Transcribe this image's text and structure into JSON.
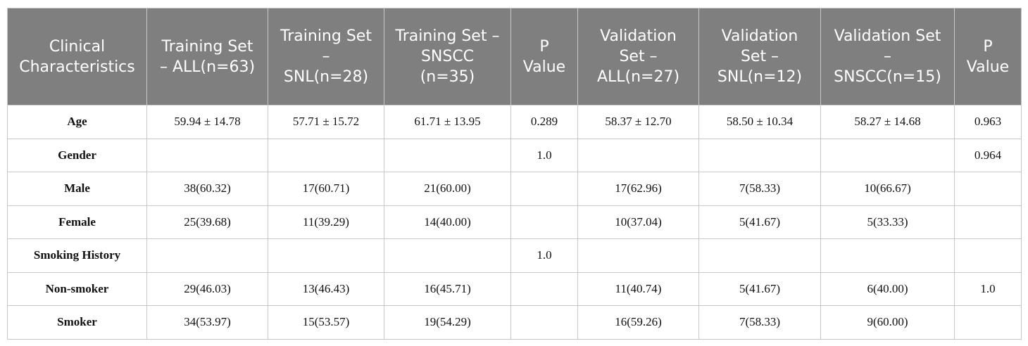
{
  "table": {
    "headers": [
      "Clinical Characteristics",
      "Training Set – ALL(n=63)",
      "Training Set – SNL(n=28)",
      "Training Set – SNSCC (n=35)",
      "P Value",
      "Validation Set – ALL(n=27)",
      "Validation Set – SNL(n=12)",
      "Validation Set – SNSCC(n=15)",
      "P Value"
    ],
    "rows": [
      [
        "Age",
        "59.94 ± 14.78",
        "57.71 ± 15.72",
        "61.71 ± 13.95",
        "0.289",
        "58.37 ± 12.70",
        "58.50 ± 10.34",
        "58.27 ± 14.68",
        "0.963"
      ],
      [
        "Gender",
        null,
        null,
        null,
        "1.0",
        null,
        null,
        null,
        "0.964"
      ],
      [
        "Male",
        "38(60.32)",
        "17(60.71)",
        "21(60.00)",
        null,
        "17(62.96)",
        "7(58.33)",
        "10(66.67)",
        null
      ],
      [
        "Female",
        "25(39.68)",
        "11(39.29)",
        "14(40.00)",
        null,
        "10(37.04)",
        "5(41.67)",
        "5(33.33)",
        null
      ],
      [
        "Smoking History",
        null,
        null,
        null,
        "1.0",
        null,
        null,
        null,
        null
      ],
      [
        "Non-smoker",
        "29(46.03)",
        "13(46.43)",
        "16(45.71)",
        null,
        "11(40.74)",
        "5(41.67)",
        "6(40.00)",
        "1.0"
      ],
      [
        "Smoker",
        "34(53.97)",
        "15(53.57)",
        "19(54.29)",
        null,
        "16(59.26)",
        "7(58.33)",
        "9(60.00)",
        null
      ]
    ]
  }
}
